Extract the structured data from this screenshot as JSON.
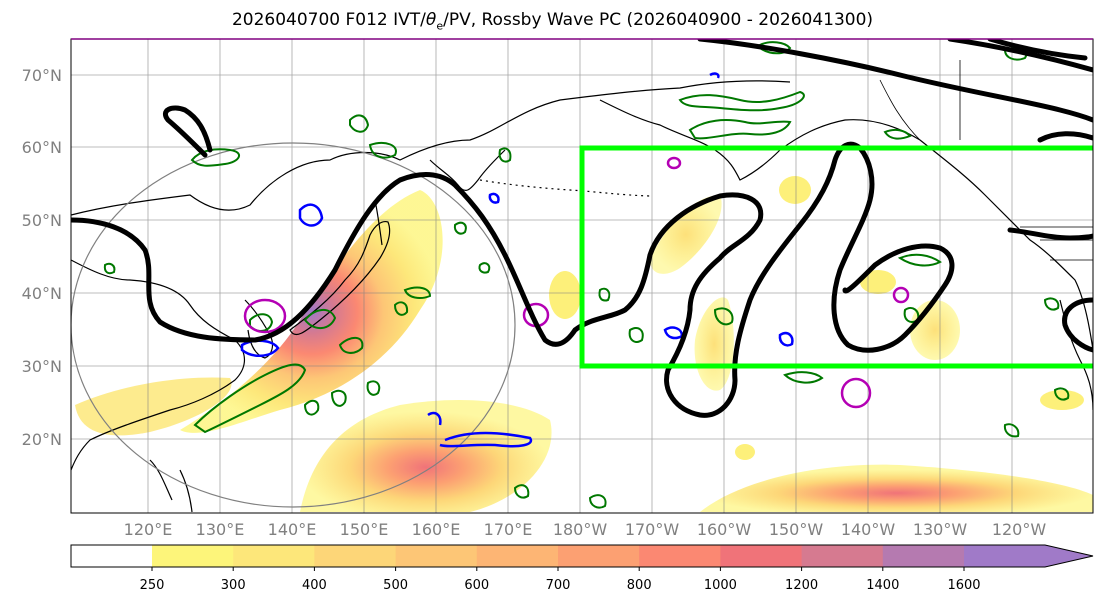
{
  "title": {
    "prefix": "2026040700 F012 IVT/",
    "theta": "θ",
    "theta_sub": "e",
    "suffix": "/PV, Rossby Wave PC (2026040900 - 2026041300)"
  },
  "lat_labels": [
    "70°N",
    "60°N",
    "50°N",
    "40°N",
    "30°N",
    "20°N"
  ],
  "lon_labels": [
    "120°E",
    "130°E",
    "140°E",
    "150°E",
    "160°E",
    "170°E",
    "180°W",
    "170°W",
    "160°W",
    "150°W",
    "140°W",
    "130°W",
    "120°W"
  ],
  "colorbar": {
    "levels": [
      "250",
      "300",
      "400",
      "500",
      "600",
      "700",
      "800",
      "1000",
      "1200",
      "1400",
      "1600"
    ],
    "colors": [
      "#fdf57a",
      "#fde77a",
      "#fdd678",
      "#fdc676",
      "#fdb574",
      "#fca072",
      "#fb8872",
      "#f07379",
      "#d67a90",
      "#b57ab0",
      "#a07ac8"
    ]
  },
  "colors": {
    "pv_contour": "#000000",
    "green_contour": "#007800",
    "blue_contour": "#0000ff",
    "magenta_contour": "#b400b4",
    "region_box": "#00ff00",
    "coast": "#000000",
    "circle": "#808080"
  }
}
